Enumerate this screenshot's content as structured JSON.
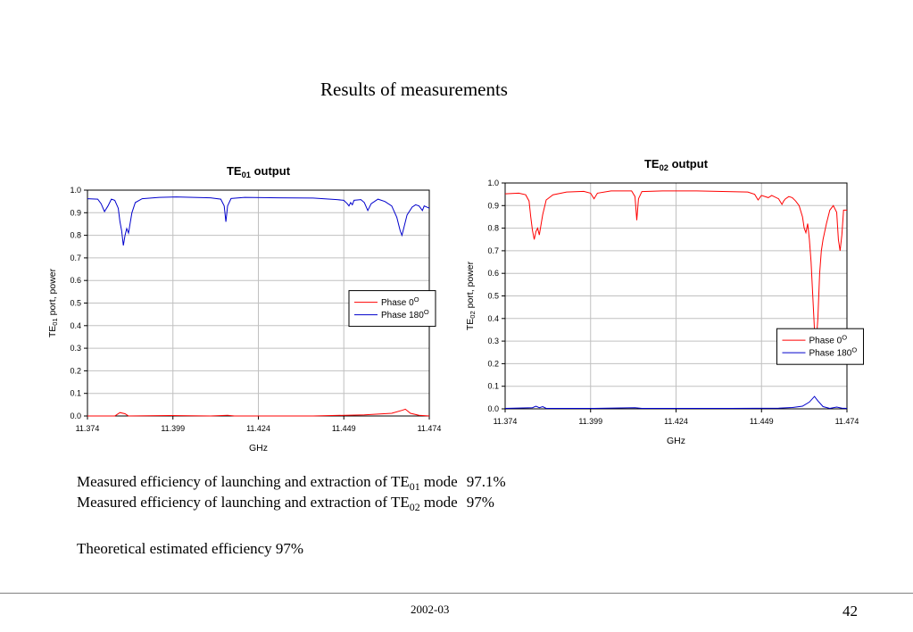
{
  "slide": {
    "title": "Results of measurements",
    "footer_date": "2002-03",
    "page_number": "42"
  },
  "results": [
    {
      "pre": "Measured efficiency of launching and extraction of TE",
      "sub": "01",
      "post": " mode",
      "value": "97.1%"
    },
    {
      "pre": "Measured efficiency of launching and extraction of TE",
      "sub": "02",
      "post": " mode",
      "value": "97%"
    }
  ],
  "theoretical": "Theoretical estimated efficiency 97%",
  "chart_data": [
    {
      "type": "line",
      "title_main": "TE",
      "title_sub": "01",
      "title_rest": " output",
      "ylabel_main": "TE",
      "ylabel_sub": "01",
      "ylabel_rest": " port, power",
      "xlabel": "GHz",
      "xlim": [
        11.374,
        11.474
      ],
      "ylim": [
        0.0,
        1.0
      ],
      "x_ticks": [
        "11.374",
        "11.399",
        "11.424",
        "11.449",
        "11.474"
      ],
      "y_ticks": [
        "0.0",
        "0.1",
        "0.2",
        "0.3",
        "0.4",
        "0.5",
        "0.6",
        "0.7",
        "0.8",
        "0.9",
        "1.0"
      ],
      "grid": true,
      "legend_position": "center-right",
      "series": [
        {
          "name": "Phase 0",
          "sup": "O",
          "color": "#ff0000",
          "points": [
            [
              11.374,
              0.0
            ],
            [
              11.382,
              0.0
            ],
            [
              11.3835,
              0.015
            ],
            [
              11.385,
              0.01
            ],
            [
              11.386,
              0.0
            ],
            [
              11.398,
              0.002
            ],
            [
              11.41,
              0.0
            ],
            [
              11.415,
              0.003
            ],
            [
              11.417,
              0.0
            ],
            [
              11.44,
              0.0
            ],
            [
              11.455,
              0.005
            ],
            [
              11.463,
              0.012
            ],
            [
              11.466,
              0.025
            ],
            [
              11.467,
              0.03
            ],
            [
              11.4685,
              0.012
            ],
            [
              11.471,
              0.003
            ],
            [
              11.474,
              0.0
            ]
          ]
        },
        {
          "name": "Phase 180",
          "sup": "O",
          "color": "#0000cc",
          "points": [
            [
              11.374,
              0.962
            ],
            [
              11.377,
              0.96
            ],
            [
              11.378,
              0.94
            ],
            [
              11.379,
              0.905
            ],
            [
              11.38,
              0.93
            ],
            [
              11.381,
              0.96
            ],
            [
              11.382,
              0.955
            ],
            [
              11.383,
              0.92
            ],
            [
              11.3835,
              0.86
            ],
            [
              11.384,
              0.82
            ],
            [
              11.3845,
              0.755
            ],
            [
              11.385,
              0.8
            ],
            [
              11.3855,
              0.83
            ],
            [
              11.386,
              0.81
            ],
            [
              11.387,
              0.9
            ],
            [
              11.388,
              0.945
            ],
            [
              11.39,
              0.962
            ],
            [
              11.395,
              0.968
            ],
            [
              11.4,
              0.97
            ],
            [
              11.405,
              0.968
            ],
            [
              11.41,
              0.966
            ],
            [
              11.413,
              0.96
            ],
            [
              11.414,
              0.93
            ],
            [
              11.4145,
              0.86
            ],
            [
              11.415,
              0.93
            ],
            [
              11.416,
              0.963
            ],
            [
              11.42,
              0.968
            ],
            [
              11.43,
              0.966
            ],
            [
              11.44,
              0.965
            ],
            [
              11.447,
              0.958
            ],
            [
              11.449,
              0.955
            ],
            [
              11.45,
              0.94
            ],
            [
              11.4505,
              0.93
            ],
            [
              11.451,
              0.945
            ],
            [
              11.4515,
              0.935
            ],
            [
              11.452,
              0.955
            ],
            [
              11.454,
              0.958
            ],
            [
              11.455,
              0.945
            ],
            [
              11.456,
              0.91
            ],
            [
              11.457,
              0.94
            ],
            [
              11.459,
              0.96
            ],
            [
              11.461,
              0.95
            ],
            [
              11.463,
              0.93
            ],
            [
              11.4645,
              0.88
            ],
            [
              11.4655,
              0.82
            ],
            [
              11.466,
              0.8
            ],
            [
              11.4665,
              0.83
            ],
            [
              11.4675,
              0.89
            ],
            [
              11.469,
              0.925
            ],
            [
              11.47,
              0.935
            ],
            [
              11.471,
              0.93
            ],
            [
              11.472,
              0.91
            ],
            [
              11.4725,
              0.93
            ],
            [
              11.474,
              0.92
            ]
          ]
        }
      ]
    },
    {
      "type": "line",
      "title_main": "TE",
      "title_sub": "02",
      "title_rest": " output",
      "ylabel_main": "TE",
      "ylabel_sub": "02",
      "ylabel_rest": " port, power",
      "xlabel": "GHz",
      "xlim": [
        11.374,
        11.474
      ],
      "ylim": [
        0.0,
        1.0
      ],
      "x_ticks": [
        "11.374",
        "11.399",
        "11.424",
        "11.449",
        "11.474"
      ],
      "y_ticks": [
        "0.0",
        "0.1",
        "0.2",
        "0.3",
        "0.4",
        "0.5",
        "0.6",
        "0.7",
        "0.8",
        "0.9",
        "1.0"
      ],
      "grid": true,
      "legend_position": "lower-right",
      "series": [
        {
          "name": "Phase 0",
          "sup": "O",
          "color": "#ff0000",
          "points": [
            [
              11.374,
              0.952
            ],
            [
              11.378,
              0.955
            ],
            [
              11.38,
              0.948
            ],
            [
              11.381,
              0.92
            ],
            [
              11.3815,
              0.85
            ],
            [
              11.382,
              0.79
            ],
            [
              11.3825,
              0.75
            ],
            [
              11.383,
              0.785
            ],
            [
              11.3835,
              0.8
            ],
            [
              11.384,
              0.77
            ],
            [
              11.385,
              0.86
            ],
            [
              11.386,
              0.925
            ],
            [
              11.388,
              0.948
            ],
            [
              11.392,
              0.96
            ],
            [
              11.397,
              0.963
            ],
            [
              11.399,
              0.955
            ],
            [
              11.4,
              0.93
            ],
            [
              11.401,
              0.955
            ],
            [
              11.405,
              0.965
            ],
            [
              11.411,
              0.965
            ],
            [
              11.412,
              0.94
            ],
            [
              11.4125,
              0.835
            ],
            [
              11.413,
              0.93
            ],
            [
              11.414,
              0.962
            ],
            [
              11.42,
              0.965
            ],
            [
              11.43,
              0.965
            ],
            [
              11.445,
              0.96
            ],
            [
              11.447,
              0.95
            ],
            [
              11.448,
              0.925
            ],
            [
              11.449,
              0.945
            ],
            [
              11.451,
              0.935
            ],
            [
              11.452,
              0.945
            ],
            [
              11.454,
              0.93
            ],
            [
              11.455,
              0.905
            ],
            [
              11.4555,
              0.92
            ],
            [
              11.456,
              0.93
            ],
            [
              11.457,
              0.94
            ],
            [
              11.458,
              0.935
            ],
            [
              11.459,
              0.92
            ],
            [
              11.46,
              0.9
            ],
            [
              11.461,
              0.85
            ],
            [
              11.4615,
              0.8
            ],
            [
              11.462,
              0.78
            ],
            [
              11.4625,
              0.82
            ],
            [
              11.463,
              0.75
            ],
            [
              11.4635,
              0.65
            ],
            [
              11.464,
              0.5
            ],
            [
              11.4645,
              0.35
            ],
            [
              11.465,
              0.29
            ],
            [
              11.4655,
              0.4
            ],
            [
              11.466,
              0.6
            ],
            [
              11.4665,
              0.7
            ],
            [
              11.467,
              0.75
            ],
            [
              11.468,
              0.82
            ],
            [
              11.469,
              0.88
            ],
            [
              11.47,
              0.9
            ],
            [
              11.471,
              0.87
            ],
            [
              11.4715,
              0.75
            ],
            [
              11.472,
              0.7
            ],
            [
              11.4725,
              0.77
            ],
            [
              11.473,
              0.88
            ],
            [
              11.474,
              0.88
            ]
          ]
        },
        {
          "name": "Phase 180",
          "sup": "O",
          "color": "#0000cc",
          "points": [
            [
              11.374,
              0.002
            ],
            [
              11.382,
              0.005
            ],
            [
              11.383,
              0.012
            ],
            [
              11.384,
              0.005
            ],
            [
              11.385,
              0.01
            ],
            [
              11.386,
              0.002
            ],
            [
              11.4,
              0.002
            ],
            [
              11.412,
              0.005
            ],
            [
              11.414,
              0.002
            ],
            [
              11.44,
              0.002
            ],
            [
              11.454,
              0.003
            ],
            [
              11.458,
              0.006
            ],
            [
              11.461,
              0.012
            ],
            [
              11.463,
              0.03
            ],
            [
              11.4645,
              0.055
            ],
            [
              11.4655,
              0.035
            ],
            [
              11.467,
              0.01
            ],
            [
              11.469,
              0.002
            ],
            [
              11.471,
              0.008
            ],
            [
              11.4725,
              0.003
            ],
            [
              11.474,
              0.002
            ]
          ]
        }
      ]
    }
  ]
}
